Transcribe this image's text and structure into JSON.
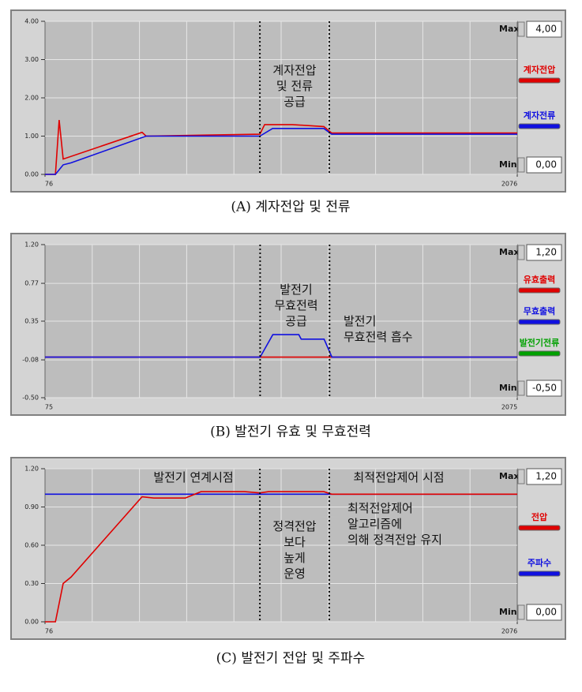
{
  "chart_data": [
    {
      "type": "line",
      "caption": "(A) 계자전압 및 전류",
      "xlim": [
        76,
        2076
      ],
      "xticks": [
        76,
        2076
      ],
      "ylim": [
        0,
        4
      ],
      "yticks": [
        {
          "value": 0,
          "label": "0.00"
        },
        {
          "value": 1,
          "label": "1.00"
        },
        {
          "value": 2,
          "label": "2.00"
        },
        {
          "value": 3,
          "label": "3.00"
        },
        {
          "value": 4,
          "label": "4.00"
        }
      ],
      "grid": true,
      "vlines": [
        986,
        1280
      ],
      "controls": {
        "max": {
          "label": "Max",
          "value": "4,00"
        },
        "min": {
          "label": "Min",
          "value": "0,00"
        }
      },
      "series": [
        {
          "name": "계자전압",
          "color": "#e00000",
          "x": [
            76,
            120,
            136,
            153,
            487,
            504,
            986,
            1006,
            1123,
            1257,
            1290,
            2076
          ],
          "values": [
            0,
            0,
            1.42,
            0.4,
            1.1,
            1.0,
            1.05,
            1.3,
            1.3,
            1.25,
            1.08,
            1.08
          ]
        },
        {
          "name": "계자전류",
          "color": "#1010e0",
          "x": [
            76,
            120,
            153,
            186,
            504,
            986,
            1040,
            1257,
            1290,
            2076
          ],
          "values": [
            0,
            0,
            0.25,
            0.3,
            1.0,
            1.0,
            1.2,
            1.2,
            1.05,
            1.05
          ]
        }
      ],
      "annotations": [
        [
          "계자전압",
          "및 전류",
          "공급"
        ]
      ]
    },
    {
      "type": "line",
      "caption": "(B) 발전기 유효 및 무효전력",
      "xlim": [
        75,
        2075
      ],
      "xticks": [
        75,
        2075
      ],
      "ylim": [
        -0.5,
        1.2
      ],
      "yticks": [
        {
          "value": -0.5,
          "label": "-0.50"
        },
        {
          "value": -0.08,
          "label": "-0.08"
        },
        {
          "value": 0.35,
          "label": "0.35"
        },
        {
          "value": 0.77,
          "label": "0.77"
        },
        {
          "value": 1.2,
          "label": "1.20"
        }
      ],
      "grid": true,
      "vlines": [
        986,
        1280
      ],
      "controls": {
        "max": {
          "label": "Max",
          "value": "1,20"
        },
        "min": {
          "label": "Min",
          "value": "-0,50"
        }
      },
      "series": [
        {
          "name": "유효출력",
          "color": "#e00000",
          "x": [
            75,
            2075
          ],
          "values": [
            -0.05,
            -0.05
          ]
        },
        {
          "name": "무효출력",
          "color": "#1010e0",
          "x": [
            75,
            986,
            1040,
            1150,
            1160,
            1257,
            1290,
            2075
          ],
          "values": [
            -0.05,
            -0.05,
            0.2,
            0.2,
            0.15,
            0.15,
            -0.05,
            -0.05
          ]
        },
        {
          "name": "발전기전류",
          "color": "#00a000",
          "x": [
            75,
            2075
          ],
          "values": [
            null,
            null
          ]
        }
      ],
      "annotations": [
        [
          "발전기",
          "무효전력",
          "공급"
        ],
        [
          "발전기",
          "무효전력 흡수"
        ]
      ]
    },
    {
      "type": "line",
      "caption": "(C) 발전기 전압 및 주파수",
      "xlim": [
        76,
        2076
      ],
      "xticks": [
        76,
        2076
      ],
      "ylim": [
        0,
        1.2
      ],
      "yticks": [
        {
          "value": 0,
          "label": "0.00"
        },
        {
          "value": 0.3,
          "label": "0.30"
        },
        {
          "value": 0.6,
          "label": "0.60"
        },
        {
          "value": 0.9,
          "label": "0.90"
        },
        {
          "value": 1.2,
          "label": "1.20"
        }
      ],
      "grid": true,
      "vlines": [
        986,
        1280
      ],
      "controls": {
        "max": {
          "label": "Max",
          "value": "1,20"
        },
        "min": {
          "label": "Min",
          "value": "0,00"
        }
      },
      "series": [
        {
          "name": "주파수",
          "color": "#1010e0",
          "x": [
            76,
            2076
          ],
          "values": [
            1.0,
            1.0
          ]
        },
        {
          "name": "전압",
          "color": "#e00000",
          "x": [
            76,
            120,
            153,
            186,
            487,
            537,
            670,
            737,
            921,
            986,
            1023,
            1257,
            1290,
            2076
          ],
          "values": [
            0,
            0,
            0.3,
            0.35,
            0.98,
            0.97,
            0.97,
            1.02,
            1.02,
            1.01,
            1.02,
            1.02,
            1.0,
            1.0
          ]
        }
      ],
      "legend_order": [
        1,
        0
      ],
      "annotations": [
        [
          "발전기 연계시점"
        ],
        [
          "최적전압제어 시점"
        ],
        [
          "정격전압",
          "보다",
          "높게",
          "운영"
        ],
        [
          "최적전압제어",
          "알고리즘에",
          "의해 정격전압 유지"
        ]
      ]
    }
  ]
}
